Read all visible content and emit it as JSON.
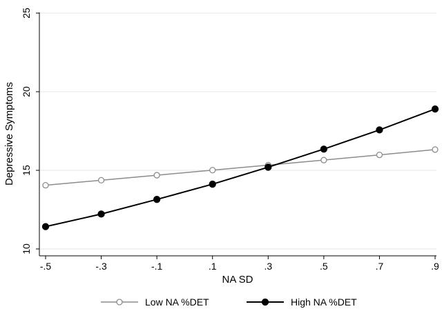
{
  "chart_data": {
    "type": "line",
    "xlabel": "NA SD",
    "ylabel": "Depressive Symptoms",
    "x": [
      -0.5,
      -0.3,
      -0.1,
      0.1,
      0.3,
      0.5,
      0.7,
      0.9
    ],
    "x_tick_labels": [
      "-.5",
      "-.3",
      "-.1",
      ".1",
      ".3",
      ".5",
      ".7",
      ".9"
    ],
    "ylim": [
      10,
      25
    ],
    "y_ticks": [
      10,
      15,
      20,
      25
    ],
    "y_tick_labels": [
      "10",
      "15",
      "20",
      "25"
    ],
    "grid": true,
    "legend_position": "bottom",
    "series": [
      {
        "name": "Low NA %DET",
        "color": "#8c8c8c",
        "marker": "hollow-circle",
        "values": [
          14.05,
          14.37,
          14.69,
          15.01,
          15.33,
          15.65,
          15.98,
          16.32
        ]
      },
      {
        "name": "High NA %DET",
        "color": "#000000",
        "marker": "filled-circle",
        "values": [
          11.42,
          12.22,
          13.15,
          14.12,
          15.2,
          16.35,
          17.57,
          18.9
        ]
      }
    ]
  }
}
